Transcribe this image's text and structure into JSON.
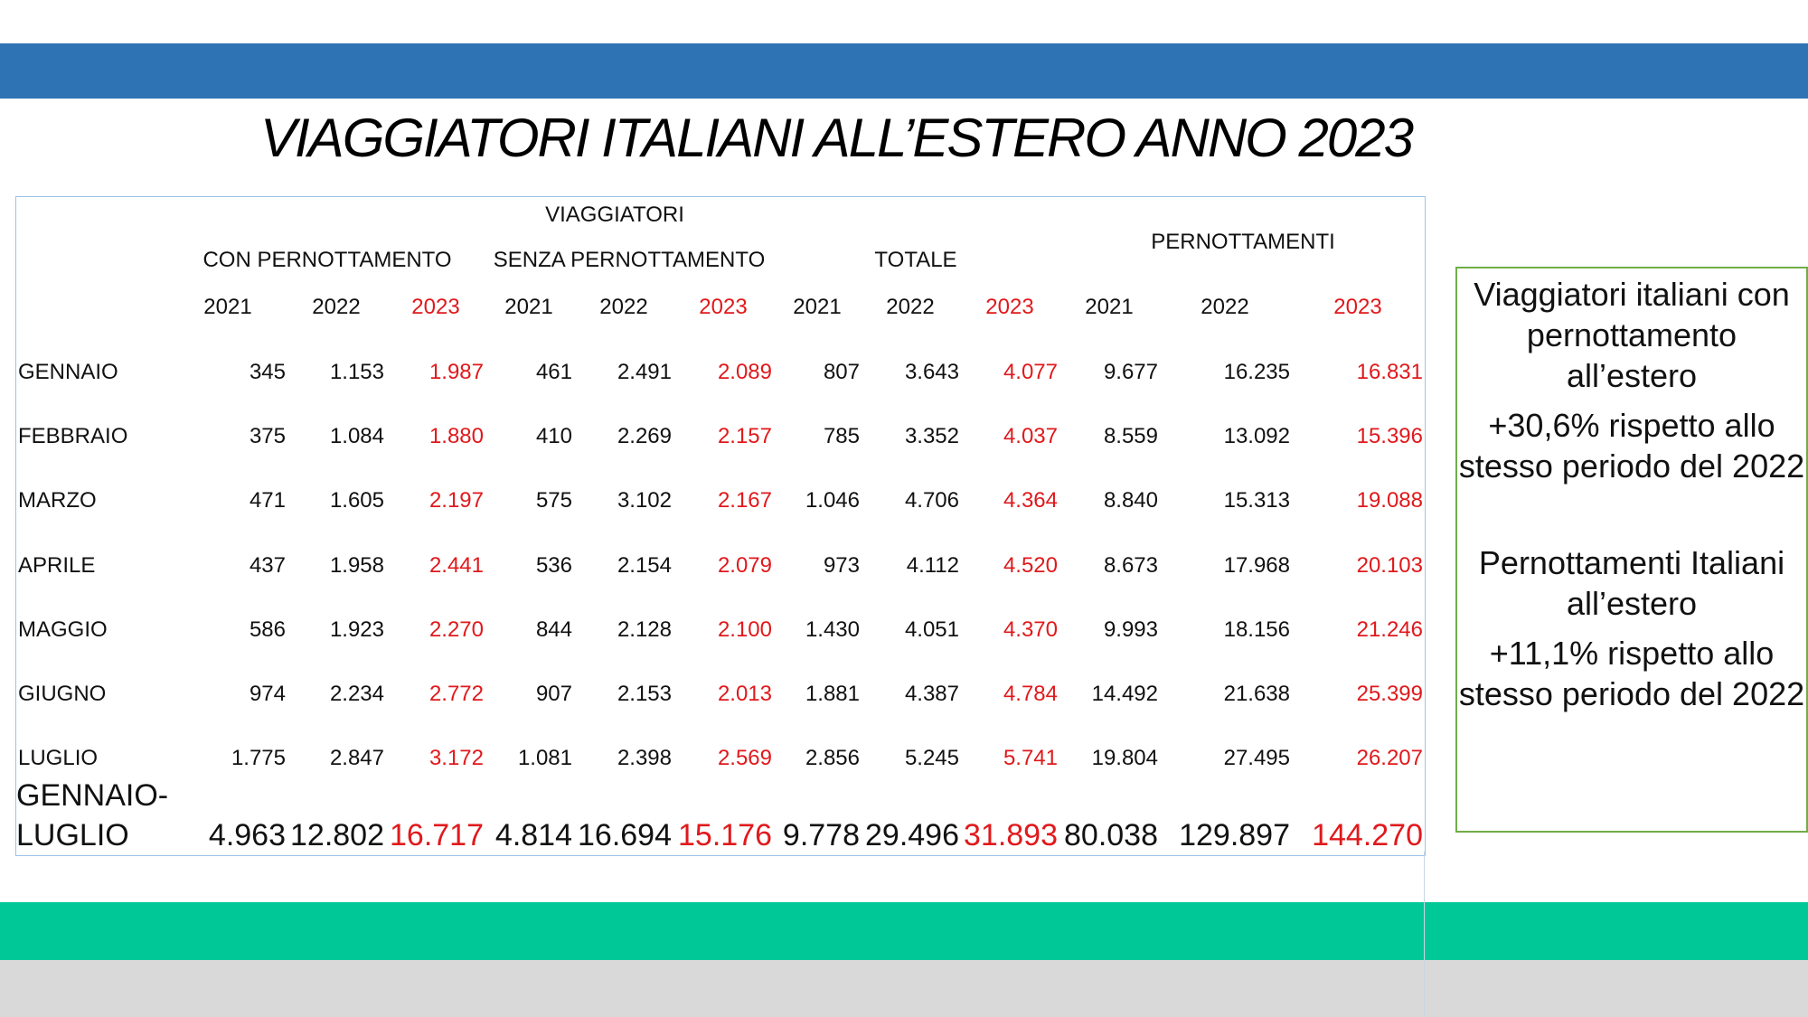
{
  "title": "VIAGGIATORI ITALIANI ALL’ESTERO ANNO 2023",
  "table": {
    "group_header": "VIAGGIATORI",
    "subgroups": [
      "CON PERNOTTAMENTO",
      "SENZA PERNOTTAMENTO",
      "TOTALE"
    ],
    "pernottamenti_header": "PERNOTTAMENTI",
    "years": [
      "2021",
      "2022",
      "2023",
      "2021",
      "2022",
      "2023",
      "2021",
      "2022",
      "2023",
      "2021",
      "2022",
      "2023"
    ],
    "rows": [
      {
        "label": "GENNAIO",
        "values": [
          "345",
          "1.153",
          "1.987",
          "461",
          "2.491",
          "2.089",
          "807",
          "3.643",
          "4.077",
          "9.677",
          "16.235",
          "16.831"
        ]
      },
      {
        "label": "FEBBRAIO",
        "values": [
          "375",
          "1.084",
          "1.880",
          "410",
          "2.269",
          "2.157",
          "785",
          "3.352",
          "4.037",
          "8.559",
          "13.092",
          "15.396"
        ]
      },
      {
        "label": "MARZO",
        "values": [
          "471",
          "1.605",
          "2.197",
          "575",
          "3.102",
          "2.167",
          "1.046",
          "4.706",
          "4.364",
          "8.840",
          "15.313",
          "19.088"
        ]
      },
      {
        "label": "APRILE",
        "values": [
          "437",
          "1.958",
          "2.441",
          "536",
          "2.154",
          "2.079",
          "973",
          "4.112",
          "4.520",
          "8.673",
          "17.968",
          "20.103"
        ]
      },
      {
        "label": "MAGGIO",
        "values": [
          "586",
          "1.923",
          "2.270",
          "844",
          "2.128",
          "2.100",
          "1.430",
          "4.051",
          "4.370",
          "9.993",
          "18.156",
          "21.246"
        ]
      },
      {
        "label": "GIUGNO",
        "values": [
          "974",
          "2.234",
          "2.772",
          "907",
          "2.153",
          "2.013",
          "1.881",
          "4.387",
          "4.784",
          "14.492",
          "21.638",
          "25.399"
        ]
      },
      {
        "label": "LUGLIO",
        "values": [
          "1.775",
          "2.847",
          "3.172",
          "1.081",
          "2.398",
          "2.569",
          "2.856",
          "5.245",
          "5.741",
          "19.804",
          "27.495",
          "26.207"
        ]
      }
    ],
    "total_row": {
      "label_line1": "GENNAIO-",
      "label_line2": "LUGLIO",
      "values": [
        "4.963",
        "12.802",
        "16.717",
        "4.814",
        "16.694",
        "15.176",
        "9.778",
        "29.496",
        "31.893",
        "80.038",
        "129.897",
        "144.270"
      ]
    }
  },
  "side_panel": {
    "block1_title": "Viaggiatori italiani con pernottamento all’estero",
    "block1_stat": "+30,6% rispetto allo stesso periodo del 2022",
    "block2_title": "Pernottamenti Italiani all’estero",
    "block2_stat": "+11,1% rispetto allo stesso periodo del 2022"
  },
  "colors": {
    "top_band": "#2e74b5",
    "bottom_band": "#00c897",
    "highlight_2023": "#e0191c",
    "side_border": "#70ad47"
  }
}
